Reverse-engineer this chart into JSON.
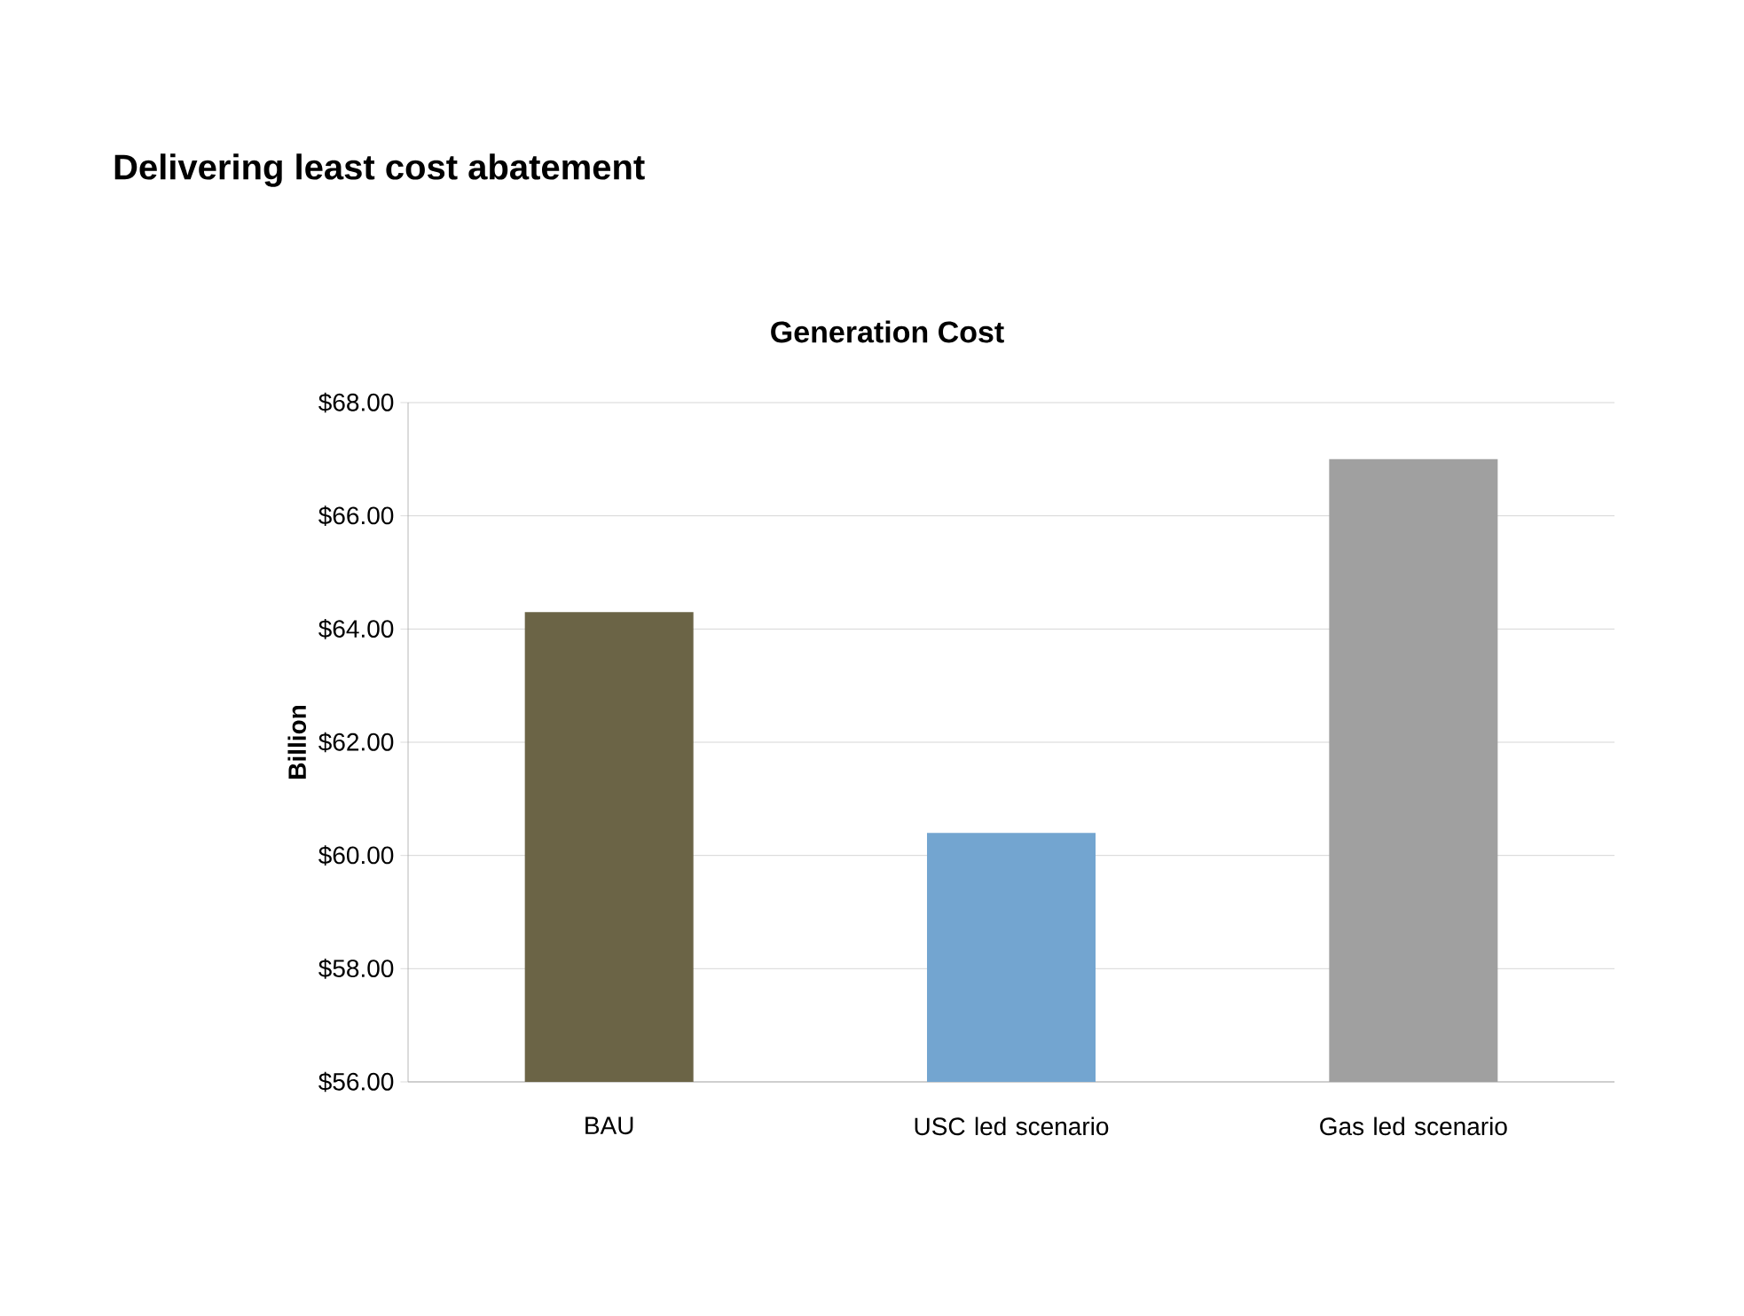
{
  "chart_data": {
    "type": "bar",
    "title": "Delivering least cost abatement",
    "subtitle": "Generation Cost",
    "ylabel": "Billion",
    "categories": [
      "BAU",
      "USC led scenario",
      "Gas led scenario"
    ],
    "values": [
      64.3,
      60.4,
      67.0
    ],
    "colors": [
      "#6b6446",
      "#73a5d0",
      "#a0a0a0"
    ],
    "ylim": [
      56,
      68
    ],
    "yticks": [
      {
        "value": 56,
        "label": "$56.00"
      },
      {
        "value": 58,
        "label": "$58.00"
      },
      {
        "value": 60,
        "label": "$60.00"
      },
      {
        "value": 62,
        "label": "$62.00"
      },
      {
        "value": 64,
        "label": "$64.00"
      },
      {
        "value": 66,
        "label": "$66.00"
      },
      {
        "value": 68,
        "label": "$68.00"
      }
    ],
    "grid": "y"
  }
}
